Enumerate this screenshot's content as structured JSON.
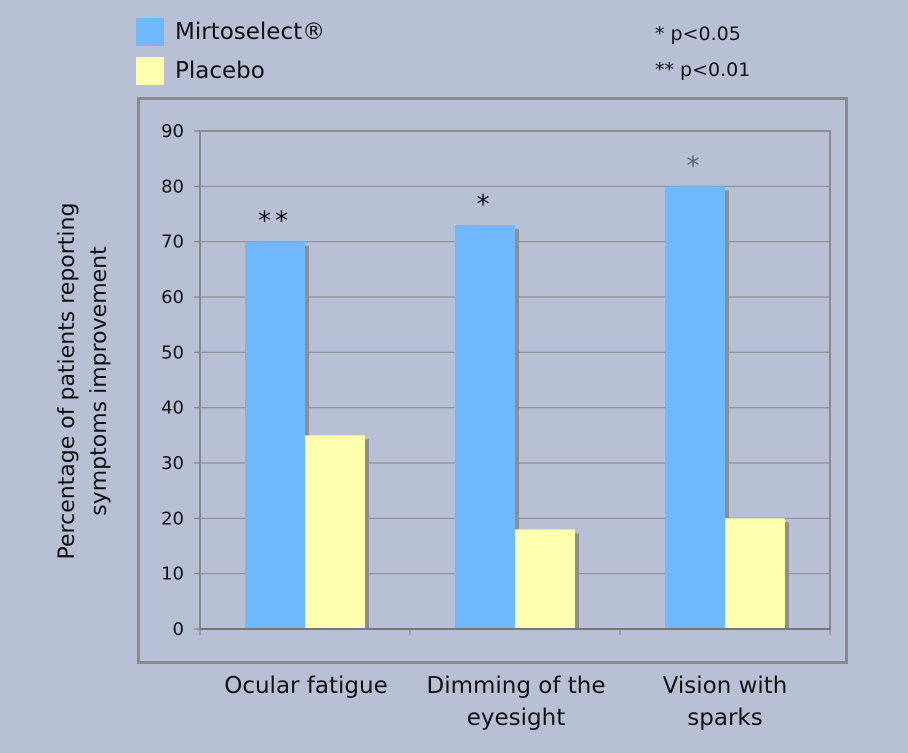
{
  "legend": [
    {
      "label": "Mirtoselect®",
      "color": "#70b8ff"
    },
    {
      "label": "Placebo",
      "color": "#ffffb0"
    }
  ],
  "significance_notes": [
    "* p<0.05",
    "** p<0.01"
  ],
  "chart_data": {
    "type": "bar",
    "categories": [
      "Ocular fatigue",
      "Dimming of the eyesight",
      "Vision with sparks"
    ],
    "category_lines": [
      [
        "Ocular fatigue"
      ],
      [
        "Dimming of the",
        "eyesight"
      ],
      [
        "Vision with",
        "sparks"
      ]
    ],
    "series": [
      {
        "name": "Mirtoselect®",
        "values": [
          70,
          73,
          80
        ],
        "color": "#70b8ff"
      },
      {
        "name": "Placebo",
        "values": [
          35,
          18,
          20
        ],
        "color": "#ffffb0"
      }
    ],
    "annotations": [
      "**",
      "*",
      "*"
    ],
    "ylabel_lines": [
      "Percentage of patients reporting",
      "symptoms improvement"
    ],
    "ylim": [
      0,
      90
    ],
    "yticks": [
      0,
      10,
      20,
      30,
      40,
      50,
      60,
      70,
      80,
      90
    ],
    "grid": true,
    "legend_position": "top-left"
  }
}
